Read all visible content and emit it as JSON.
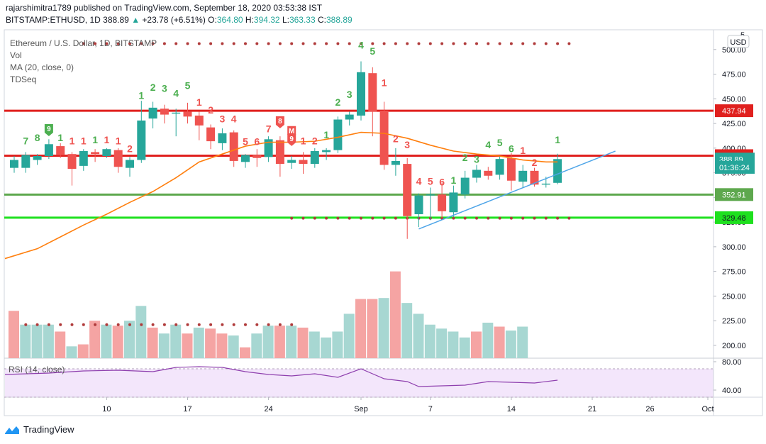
{
  "header": {
    "line1": "rajarshimitra1789 published on TradingView.com, September 18, 2020 03:53:38 IST",
    "symbol": "BITSTAMP:ETHUSD, 1D",
    "last": "388.89",
    "arrow": "▲",
    "change": "+23.78 (+6.51%)",
    "o_label": "O:",
    "o_value": "364.80",
    "h_label": "H:",
    "h_value": "394.32",
    "l_label": "L:",
    "l_value": "363.33",
    "c_label": "C:",
    "c_value": "388.89"
  },
  "legend": {
    "title": "Ethereum / U.S. Dollar, 1D, BITSTAMP",
    "vol": "Vol",
    "ma": "MA (20, close, 0)",
    "tdseq": "TDSeq",
    "rsi": "RSI (14, close)"
  },
  "currency": "USD",
  "footer": {
    "brand": "TradingView"
  },
  "colors": {
    "up": "#26a69a",
    "down": "#ef5350",
    "vol_up": "#a7d7d2",
    "vol_down": "#f5a4a3",
    "ma": "#ff7f0e",
    "trend": "#4ea5e8",
    "resistance": "#e0201e",
    "support_green": "#1ee01e",
    "support_olive": "#5ea84e",
    "rsi": "#8e3fae",
    "rsi_band": "#f3e6fb"
  },
  "chart_data": {
    "type": "candlestick",
    "price_axis": {
      "min": 187,
      "max": 520,
      "ticks": [
        "500.00",
        "475.00",
        "450.00",
        "425.00",
        "400.00",
        "375.00",
        "350.00",
        "325.00",
        "300.00",
        "275.00",
        "250.00",
        "225.00",
        "200.00"
      ],
      "top_partial": "5"
    },
    "time_axis": {
      "labels": [
        {
          "text": "10",
          "t": 8
        },
        {
          "text": "17",
          "t": 15
        },
        {
          "text": "24",
          "t": 22
        },
        {
          "text": "Sep",
          "t": 30
        },
        {
          "text": "7",
          "t": 36
        },
        {
          "text": "14",
          "t": 43
        },
        {
          "text": "21",
          "t": 50
        },
        {
          "text": "26",
          "t": 55
        },
        {
          "text": "Oct",
          "t": 60
        }
      ]
    },
    "candles": [
      {
        "t": 0,
        "o": 380,
        "h": 392,
        "l": 375,
        "c": 388
      },
      {
        "t": 1,
        "o": 380,
        "h": 396,
        "l": 375,
        "c": 393
      },
      {
        "t": 2,
        "o": 388,
        "h": 394,
        "l": 383,
        "c": 392
      },
      {
        "t": 3,
        "o": 392,
        "h": 409,
        "l": 389,
        "c": 404
      },
      {
        "t": 4,
        "o": 402,
        "h": 405,
        "l": 390,
        "c": 393
      },
      {
        "t": 5,
        "o": 394,
        "h": 396,
        "l": 362,
        "c": 379
      },
      {
        "t": 6,
        "o": 382,
        "h": 399,
        "l": 377,
        "c": 397
      },
      {
        "t": 7,
        "o": 396,
        "h": 399,
        "l": 386,
        "c": 394
      },
      {
        "t": 8,
        "o": 392,
        "h": 400,
        "l": 390,
        "c": 399
      },
      {
        "t": 9,
        "o": 398,
        "h": 400,
        "l": 375,
        "c": 381
      },
      {
        "t": 10,
        "o": 380,
        "h": 391,
        "l": 371,
        "c": 388
      },
      {
        "t": 11,
        "o": 388,
        "h": 448,
        "l": 385,
        "c": 428
      },
      {
        "t": 12,
        "o": 430,
        "h": 447,
        "l": 420,
        "c": 441
      },
      {
        "t": 13,
        "o": 440,
        "h": 444,
        "l": 425,
        "c": 434
      },
      {
        "t": 14,
        "o": 435,
        "h": 440,
        "l": 412,
        "c": 436
      },
      {
        "t": 15,
        "o": 437,
        "h": 446,
        "l": 425,
        "c": 432
      },
      {
        "t": 16,
        "o": 433,
        "h": 437,
        "l": 408,
        "c": 423
      },
      {
        "t": 17,
        "o": 421,
        "h": 424,
        "l": 399,
        "c": 407
      },
      {
        "t": 18,
        "o": 405,
        "h": 420,
        "l": 398,
        "c": 415
      },
      {
        "t": 19,
        "o": 416,
        "h": 418,
        "l": 381,
        "c": 387
      },
      {
        "t": 20,
        "o": 386,
        "h": 394,
        "l": 380,
        "c": 393
      },
      {
        "t": 21,
        "o": 393,
        "h": 399,
        "l": 381,
        "c": 390
      },
      {
        "t": 22,
        "o": 391,
        "h": 412,
        "l": 386,
        "c": 409
      },
      {
        "t": 23,
        "o": 408,
        "h": 412,
        "l": 371,
        "c": 384
      },
      {
        "t": 24,
        "o": 385,
        "h": 392,
        "l": 379,
        "c": 388
      },
      {
        "t": 25,
        "o": 388,
        "h": 396,
        "l": 374,
        "c": 384
      },
      {
        "t": 26,
        "o": 384,
        "h": 400,
        "l": 380,
        "c": 397
      },
      {
        "t": 27,
        "o": 396,
        "h": 400,
        "l": 388,
        "c": 398
      },
      {
        "t": 28,
        "o": 398,
        "h": 432,
        "l": 395,
        "c": 429
      },
      {
        "t": 29,
        "o": 429,
        "h": 437,
        "l": 423,
        "c": 434
      },
      {
        "t": 30,
        "o": 433,
        "h": 488,
        "l": 428,
        "c": 477
      },
      {
        "t": 31,
        "o": 476,
        "h": 482,
        "l": 412,
        "c": 437
      },
      {
        "t": 32,
        "o": 438,
        "h": 447,
        "l": 378,
        "c": 383
      },
      {
        "t": 33,
        "o": 383,
        "h": 400,
        "l": 372,
        "c": 387
      },
      {
        "t": 34,
        "o": 384,
        "h": 390,
        "l": 308,
        "c": 331
      },
      {
        "t": 35,
        "o": 333,
        "h": 354,
        "l": 320,
        "c": 352
      },
      {
        "t": 36,
        "o": 352,
        "h": 360,
        "l": 327,
        "c": 353
      },
      {
        "t": 37,
        "o": 353,
        "h": 365,
        "l": 329,
        "c": 336
      },
      {
        "t": 38,
        "o": 335,
        "h": 362,
        "l": 330,
        "c": 355
      },
      {
        "t": 39,
        "o": 353,
        "h": 377,
        "l": 349,
        "c": 370
      },
      {
        "t": 40,
        "o": 370,
        "h": 383,
        "l": 365,
        "c": 378
      },
      {
        "t": 41,
        "o": 377,
        "h": 381,
        "l": 368,
        "c": 372
      },
      {
        "t": 42,
        "o": 373,
        "h": 392,
        "l": 368,
        "c": 389
      },
      {
        "t": 43,
        "o": 390,
        "h": 395,
        "l": 357,
        "c": 367
      },
      {
        "t": 44,
        "o": 366,
        "h": 383,
        "l": 360,
        "c": 377
      },
      {
        "t": 45,
        "o": 377,
        "h": 380,
        "l": 361,
        "c": 363
      },
      {
        "t": 46,
        "o": 363,
        "h": 371,
        "l": 360,
        "c": 364
      },
      {
        "t": 47,
        "o": 364.8,
        "h": 394.32,
        "l": 363.33,
        "c": 388.89
      }
    ],
    "volume": [
      {
        "t": 0,
        "v": 235,
        "up": false
      },
      {
        "t": 1,
        "v": 221,
        "up": true
      },
      {
        "t": 2,
        "v": 221,
        "up": true
      },
      {
        "t": 3,
        "v": 221,
        "up": true
      },
      {
        "t": 4,
        "v": 214,
        "up": false
      },
      {
        "t": 5,
        "v": 199,
        "up": true
      },
      {
        "t": 6,
        "v": 201,
        "up": false
      },
      {
        "t": 7,
        "v": 225,
        "up": false
      },
      {
        "t": 8,
        "v": 221,
        "up": true
      },
      {
        "t": 9,
        "v": 220,
        "up": false
      },
      {
        "t": 10,
        "v": 225,
        "up": true
      },
      {
        "t": 11,
        "v": 240,
        "up": true
      },
      {
        "t": 12,
        "v": 218,
        "up": false
      },
      {
        "t": 13,
        "v": 212,
        "up": true
      },
      {
        "t": 14,
        "v": 221,
        "up": true
      },
      {
        "t": 15,
        "v": 212,
        "up": false
      },
      {
        "t": 16,
        "v": 218,
        "up": true
      },
      {
        "t": 17,
        "v": 217,
        "up": false
      },
      {
        "t": 18,
        "v": 212,
        "up": false
      },
      {
        "t": 19,
        "v": 210,
        "up": true
      },
      {
        "t": 20,
        "v": 198,
        "up": false
      },
      {
        "t": 21,
        "v": 212,
        "up": true
      },
      {
        "t": 22,
        "v": 220,
        "up": true
      },
      {
        "t": 23,
        "v": 220,
        "up": false
      },
      {
        "t": 24,
        "v": 220,
        "up": true
      },
      {
        "t": 25,
        "v": 218,
        "up": false
      },
      {
        "t": 26,
        "v": 214,
        "up": true
      },
      {
        "t": 27,
        "v": 208,
        "up": true
      },
      {
        "t": 28,
        "v": 214,
        "up": true
      },
      {
        "t": 29,
        "v": 232,
        "up": true
      },
      {
        "t": 30,
        "v": 247,
        "up": false
      },
      {
        "t": 31,
        "v": 247,
        "up": false
      },
      {
        "t": 32,
        "v": 248,
        "up": true
      },
      {
        "t": 33,
        "v": 275,
        "up": false
      },
      {
        "t": 34,
        "v": 243,
        "up": true
      },
      {
        "t": 35,
        "v": 232,
        "up": true
      },
      {
        "t": 36,
        "v": 221,
        "up": true
      },
      {
        "t": 37,
        "v": 217,
        "up": true
      },
      {
        "t": 38,
        "v": 214,
        "up": true
      },
      {
        "t": 39,
        "v": 208,
        "up": true
      },
      {
        "t": 40,
        "v": 214,
        "up": false
      },
      {
        "t": 41,
        "v": 223,
        "up": true
      },
      {
        "t": 42,
        "v": 219,
        "up": false
      },
      {
        "t": 43,
        "v": 215,
        "up": true
      },
      {
        "t": 44,
        "v": 219,
        "up": true
      }
    ],
    "ma20": [
      [
        0,
        288
      ],
      [
        2,
        298
      ],
      [
        4,
        310
      ],
      [
        6,
        322
      ],
      [
        8,
        333
      ],
      [
        10,
        345
      ],
      [
        12,
        356
      ],
      [
        14,
        370
      ],
      [
        16,
        386
      ],
      [
        18,
        394
      ],
      [
        20,
        402
      ],
      [
        22,
        406
      ],
      [
        24,
        406
      ],
      [
        26,
        407
      ],
      [
        28,
        411
      ],
      [
        30,
        416
      ],
      [
        32,
        415
      ],
      [
        34,
        410
      ],
      [
        36,
        403
      ],
      [
        38,
        397
      ],
      [
        40,
        394
      ],
      [
        42,
        392
      ],
      [
        44,
        388
      ],
      [
        46,
        386
      ],
      [
        47,
        386
      ]
    ],
    "rsi": {
      "min": 30,
      "max": 85,
      "band": [
        70,
        30
      ],
      "ticks": [
        "80.00",
        "40.00"
      ],
      "series": [
        [
          0,
          62
        ],
        [
          3,
          64
        ],
        [
          6,
          67
        ],
        [
          9,
          68
        ],
        [
          12,
          66
        ],
        [
          14,
          72
        ],
        [
          16,
          73
        ],
        [
          18,
          72
        ],
        [
          20,
          66
        ],
        [
          22,
          62
        ],
        [
          24,
          60
        ],
        [
          26,
          63
        ],
        [
          28,
          58
        ],
        [
          30,
          70
        ],
        [
          32,
          56
        ],
        [
          34,
          52
        ],
        [
          35,
          45
        ],
        [
          37,
          46
        ],
        [
          39,
          47
        ],
        [
          41,
          52
        ],
        [
          43,
          51
        ],
        [
          45,
          50
        ],
        [
          47,
          54
        ]
      ]
    },
    "levels": [
      {
        "value": 437.94,
        "label": "437.94",
        "color": "#e0201e",
        "bg": "#e0201e"
      },
      {
        "value": 392.35,
        "label": "392.35",
        "color": "#e0201e",
        "bg": "#e0201e"
      },
      {
        "value": 352.91,
        "label": "352.91",
        "color": "#5ea84e",
        "bg": "#5ea84e"
      },
      {
        "value": 329.48,
        "label": "329.48",
        "color": "#1ee01e",
        "bg": "#1ee01e"
      }
    ],
    "price_labels": [
      {
        "value": 388.89,
        "label": "388.89"
      },
      {
        "value": 380.5,
        "label": "01:36:24"
      }
    ],
    "trendline": {
      "from": [
        35,
        318
      ],
      "to": [
        52,
        397
      ]
    },
    "tdseq_dots": [
      {
        "t_from": 6,
        "t_to": 48,
        "price": 506
      },
      {
        "t_from": 24,
        "t_to": 48,
        "price": 329
      },
      {
        "t_from": 1,
        "t_to": 24,
        "price": 221
      }
    ],
    "td_numbers": [
      {
        "t": 1,
        "n": "7",
        "up": true,
        "y": 404
      },
      {
        "t": 2,
        "n": "8",
        "up": true,
        "y": 407
      },
      {
        "t": 4,
        "n": "1",
        "up": true,
        "y": 407
      },
      {
        "t": 5,
        "n": "1",
        "up": false,
        "y": 404
      },
      {
        "t": 6,
        "n": "1",
        "up": false,
        "y": 404
      },
      {
        "t": 7,
        "n": "1",
        "up": true,
        "y": 405
      },
      {
        "t": 8,
        "n": "1",
        "up": false,
        "y": 405
      },
      {
        "t": 9,
        "n": "1",
        "up": false,
        "y": 404
      },
      {
        "t": 10,
        "n": "2",
        "up": false,
        "y": 396
      },
      {
        "t": 11,
        "n": "1",
        "up": true,
        "y": 450
      },
      {
        "t": 12,
        "n": "2",
        "up": true,
        "y": 458
      },
      {
        "t": 13,
        "n": "3",
        "up": true,
        "y": 457
      },
      {
        "t": 14,
        "n": "4",
        "up": true,
        "y": 452
      },
      {
        "t": 15,
        "n": "5",
        "up": true,
        "y": 460
      },
      {
        "t": 16,
        "n": "1",
        "up": false,
        "y": 443
      },
      {
        "t": 17,
        "n": "2",
        "up": false,
        "y": 435
      },
      {
        "t": 18,
        "n": "3",
        "up": false,
        "y": 426
      },
      {
        "t": 19,
        "n": "4",
        "up": false,
        "y": 426
      },
      {
        "t": 20,
        "n": "5",
        "up": false,
        "y": 403
      },
      {
        "t": 21,
        "n": "6",
        "up": false,
        "y": 403
      },
      {
        "t": 22,
        "n": "7",
        "up": false,
        "y": 416
      },
      {
        "t": 25,
        "n": "1",
        "up": false,
        "y": 404
      },
      {
        "t": 26,
        "n": "2",
        "up": false,
        "y": 404
      },
      {
        "t": 27,
        "n": "1",
        "up": true,
        "y": 410
      },
      {
        "t": 28,
        "n": "2",
        "up": true,
        "y": 443
      },
      {
        "t": 29,
        "n": "3",
        "up": true,
        "y": 451
      },
      {
        "t": 30,
        "n": "4",
        "up": true,
        "y": 501
      },
      {
        "t": 31,
        "n": "5",
        "up": true,
        "y": 495
      },
      {
        "t": 32,
        "n": "1",
        "up": false,
        "y": 463
      },
      {
        "t": 33,
        "n": "2",
        "up": false,
        "y": 406
      },
      {
        "t": 34,
        "n": "3",
        "up": false,
        "y": 400
      },
      {
        "t": 35,
        "n": "4",
        "up": false,
        "y": 363
      },
      {
        "t": 36,
        "n": "5",
        "up": false,
        "y": 363
      },
      {
        "t": 37,
        "n": "6",
        "up": false,
        "y": 362
      },
      {
        "t": 38,
        "n": "1",
        "up": true,
        "y": 364
      },
      {
        "t": 39,
        "n": "2",
        "up": true,
        "y": 387
      },
      {
        "t": 40,
        "n": "3",
        "up": true,
        "y": 385
      },
      {
        "t": 41,
        "n": "4",
        "up": true,
        "y": 400
      },
      {
        "t": 42,
        "n": "5",
        "up": true,
        "y": 402
      },
      {
        "t": 43,
        "n": "6",
        "up": true,
        "y": 396
      },
      {
        "t": 44,
        "n": "1",
        "up": false,
        "y": 394
      },
      {
        "t": 45,
        "n": "2",
        "up": false,
        "y": 382
      },
      {
        "t": 47,
        "n": "1",
        "up": true,
        "y": 405
      }
    ],
    "td_flags": [
      {
        "t": 3,
        "n": "9",
        "up": true,
        "y": 415
      },
      {
        "t": 23,
        "n": "8",
        "up": false,
        "y": 423
      },
      {
        "t": 24,
        "n": "M",
        "up": false,
        "y": 413
      },
      {
        "t": 24,
        "n": "9",
        "up": false,
        "y": 405
      }
    ]
  }
}
